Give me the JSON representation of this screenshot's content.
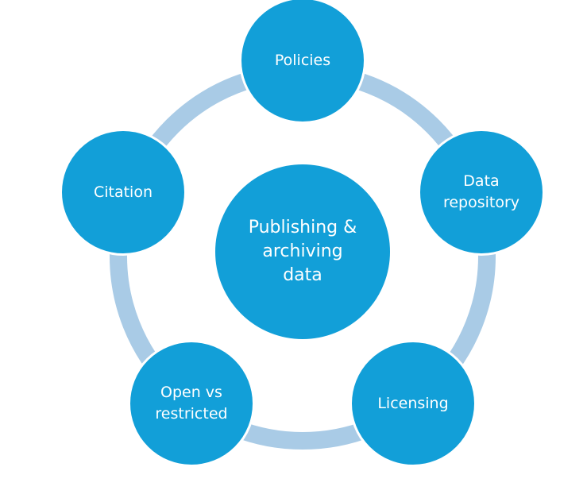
{
  "colors": {
    "node_fill": "#129fd8",
    "ring": "#a9cbe6",
    "node_border": "#ffffff"
  },
  "center": {
    "label": "Publishing &\narchiving\ndata"
  },
  "nodes": [
    {
      "id": "policies",
      "label": "Policies"
    },
    {
      "id": "data-repository",
      "label": "Data\nrepository"
    },
    {
      "id": "licensing",
      "label": "Licensing"
    },
    {
      "id": "open-vs-restricted",
      "label": "Open vs\nrestricted"
    },
    {
      "id": "citation",
      "label": "Citation"
    }
  ]
}
